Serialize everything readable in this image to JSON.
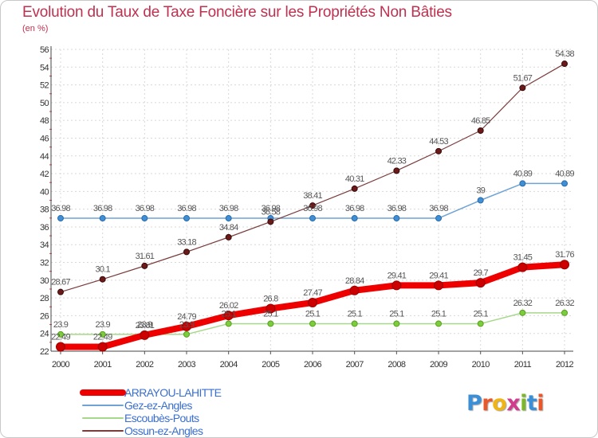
{
  "title": "Evolution du Taux de Taxe Foncière sur les Propriétés Non Bâties",
  "subtitle": "(en %)",
  "brand": {
    "letters": [
      "P",
      "r",
      "o",
      "x",
      "i",
      "t",
      "i"
    ],
    "colors": [
      "#3a8fd6",
      "#e8562a",
      "#f0b414",
      "#d23c8c",
      "#7ab828",
      "#3a8fd6",
      "#e8562a"
    ]
  },
  "chart_data": {
    "type": "line",
    "title": "Evolution du Taux de Taxe Foncière sur les Propriétés Non Bâties",
    "ylabel": "(en %)",
    "x": [
      2000,
      2001,
      2002,
      2003,
      2004,
      2005,
      2006,
      2007,
      2008,
      2009,
      2010,
      2011,
      2012
    ],
    "ylim": [
      22,
      56
    ],
    "yticks": [
      22,
      24,
      26,
      28,
      30,
      32,
      34,
      36,
      38,
      40,
      42,
      44,
      46,
      48,
      50,
      52,
      54,
      56
    ],
    "grid": true,
    "legend": "bottom-left",
    "series": [
      {
        "name": "ARRAYOU-LAHITTE",
        "color": "#ee0000",
        "values": [
          22.49,
          22.49,
          23.81,
          24.79,
          26.02,
          26.8,
          27.47,
          28.84,
          29.41,
          29.41,
          29.7,
          31.45,
          31.76
        ],
        "labels": [
          "22.49",
          "22.49",
          "23.81",
          "24.79",
          "26.02",
          "26.8",
          "27.47",
          "28.84",
          "29.41",
          "29.41",
          "29.7",
          "31.45",
          "31.76"
        ]
      },
      {
        "name": "Gez-ez-Angles",
        "color": "#6fa3d6",
        "values": [
          36.98,
          36.98,
          36.98,
          36.98,
          36.98,
          36.98,
          36.98,
          36.98,
          36.98,
          36.98,
          39,
          40.89,
          40.89
        ],
        "labels": [
          "36.98",
          "36.98",
          "36.98",
          "36.98",
          "36.98",
          "36.98",
          "36.98",
          "36.98",
          "36.98",
          "36.98",
          "39",
          "40.89",
          "40.89"
        ]
      },
      {
        "name": "Escoubès-Pouts",
        "color": "#a6d88a",
        "values": [
          23.9,
          23.9,
          23.9,
          23.9,
          25.1,
          25.1,
          25.1,
          25.1,
          25.1,
          25.1,
          25.1,
          26.32,
          26.32
        ],
        "labels": [
          "23.9",
          "23.9",
          "23.9",
          "23.9",
          "25.1",
          "25.1",
          "25.1",
          "25.1",
          "25.1",
          "25.1",
          "25.1",
          "26.32",
          "26.32"
        ]
      },
      {
        "name": "Ossun-ez-Angles",
        "color": "#7a3b3b",
        "values": [
          28.67,
          30.1,
          31.61,
          33.18,
          34.84,
          36.58,
          38.41,
          40.31,
          42.33,
          44.53,
          46.85,
          51.67,
          54.38
        ],
        "labels": [
          "28.67",
          "30.1",
          "31.61",
          "33.18",
          "34.84",
          "36.58",
          "38.41",
          "40.31",
          "42.33",
          "44.53",
          "46.85",
          "51.67",
          "54.38"
        ]
      }
    ]
  }
}
